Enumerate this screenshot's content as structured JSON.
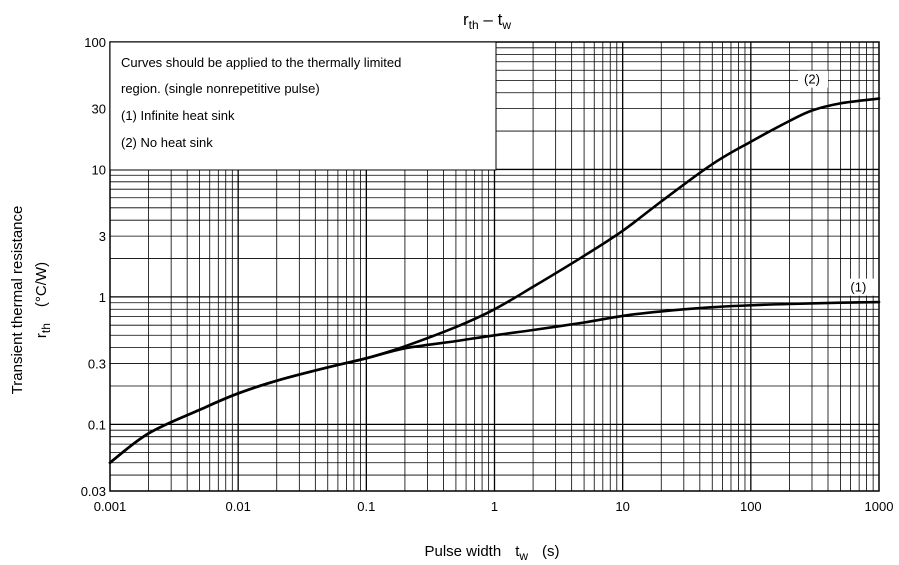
{
  "chart_data": {
    "type": "line",
    "title": {
      "main": "r",
      "main_sub": "th",
      "sep": " – ",
      "second": "t",
      "second_sub": "w"
    },
    "xlabel": {
      "text": "Pulse width",
      "sym": "t",
      "sym_sub": "w",
      "unit": "(s)"
    },
    "ylabel": {
      "text": "Transient thermal resistance",
      "sym": "r",
      "sym_sub": "th",
      "unit": "(°C/W)"
    },
    "x_scale": "log",
    "y_scale": "log",
    "xlim": [
      0.001,
      1000
    ],
    "ylim": [
      0.03,
      100
    ],
    "grid": true,
    "x_ticks": [
      0.001,
      0.01,
      0.1,
      1,
      10,
      100,
      1000
    ],
    "x_tick_labels": [
      "0.001",
      "0.01",
      "0.1",
      "1",
      "10",
      "100",
      "1000"
    ],
    "y_ticks": [
      0.03,
      0.1,
      0.3,
      1,
      3,
      10,
      30,
      100
    ],
    "y_tick_labels": [
      "0.03",
      "0.1",
      "0.3",
      "1",
      "3",
      "10",
      "30",
      "100"
    ],
    "note_lines": [
      "Curves should be applied to the thermally limited",
      "region. (single nonrepetitive pulse)",
      "(1)  Infinite heat sink",
      "(2)  No heat sink"
    ],
    "series": [
      {
        "name": "(1)",
        "x": [
          0.001,
          0.002,
          0.005,
          0.01,
          0.02,
          0.05,
          0.1,
          0.2,
          0.5,
          1,
          2,
          5,
          10,
          20,
          50,
          100,
          200,
          500,
          1000
        ],
        "y": [
          0.05,
          0.085,
          0.13,
          0.175,
          0.22,
          0.28,
          0.33,
          0.395,
          0.45,
          0.5,
          0.55,
          0.63,
          0.71,
          0.77,
          0.83,
          0.86,
          0.88,
          0.9,
          0.91
        ]
      },
      {
        "name": "(2)",
        "x": [
          0.001,
          0.002,
          0.005,
          0.01,
          0.02,
          0.05,
          0.1,
          0.2,
          0.5,
          1,
          2,
          5,
          10,
          20,
          50,
          100,
          200,
          300,
          500,
          1000
        ],
        "y": [
          0.05,
          0.085,
          0.13,
          0.175,
          0.22,
          0.28,
          0.33,
          0.41,
          0.58,
          0.8,
          1.2,
          2.1,
          3.3,
          5.6,
          11,
          16.5,
          24,
          29,
          33,
          36
        ]
      }
    ]
  }
}
